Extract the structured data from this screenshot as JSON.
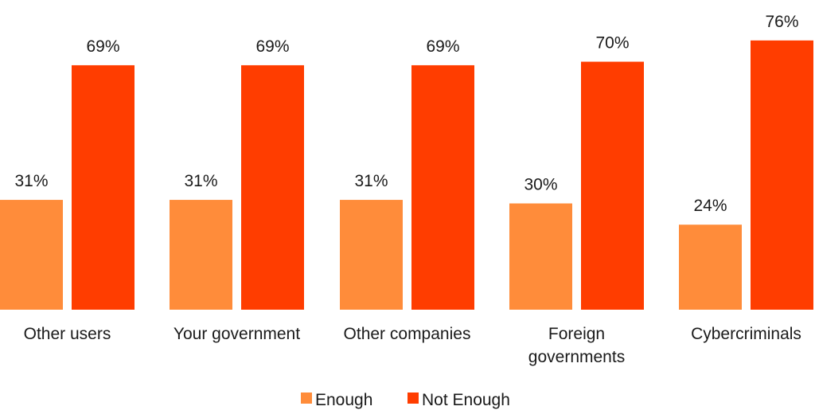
{
  "chart_data": {
    "type": "bar",
    "categories": [
      [
        "Other users"
      ],
      [
        "Your government"
      ],
      [
        "Other companies"
      ],
      [
        "Foreign",
        "governments"
      ],
      [
        "Cybercriminals"
      ]
    ],
    "series": [
      {
        "name": "Enough",
        "color": "#FF8C3A",
        "values": [
          31,
          31,
          31,
          30,
          24
        ],
        "labels": [
          "31%",
          "31%",
          "31%",
          "30%",
          "24%"
        ]
      },
      {
        "name": "Not Enough",
        "color": "#FF3D00",
        "values": [
          69,
          69,
          69,
          70,
          76
        ],
        "labels": [
          "69%",
          "69%",
          "69%",
          "70%",
          "76%"
        ]
      }
    ],
    "ylim": [
      0,
      100
    ],
    "grid": false,
    "legend_position": "bottom-center"
  }
}
